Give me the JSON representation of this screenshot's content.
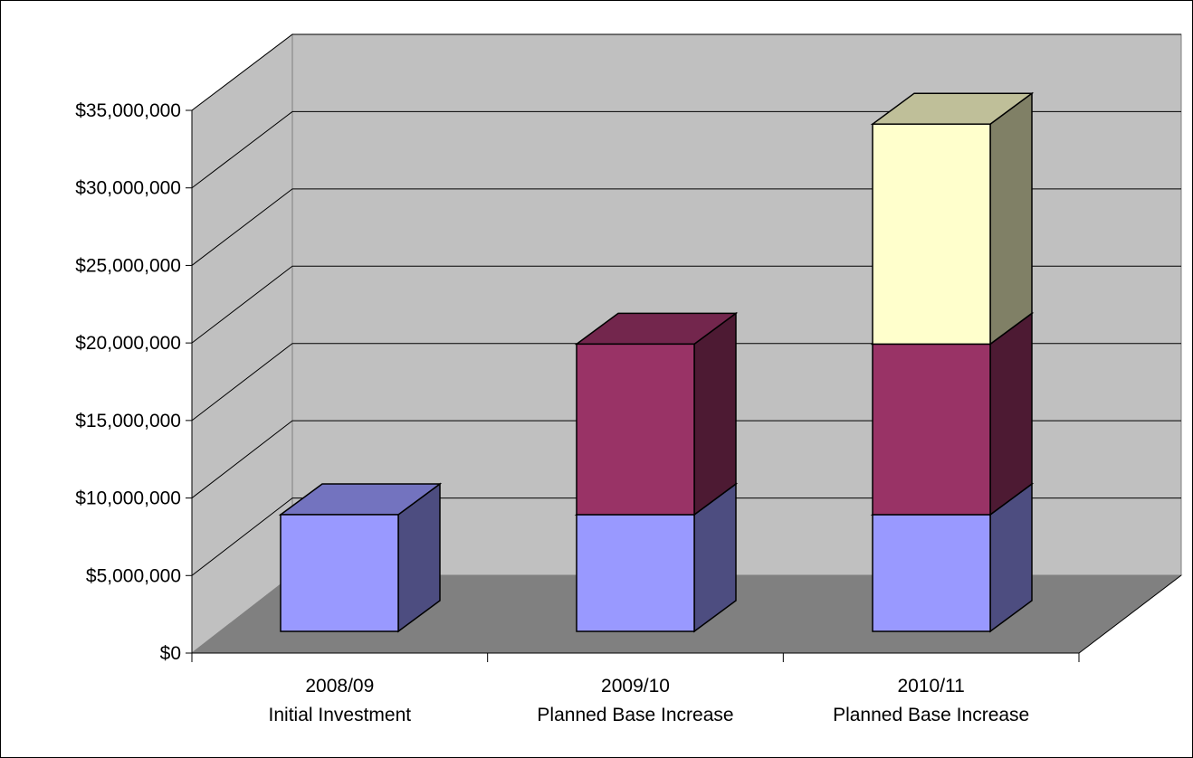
{
  "chart_data": {
    "type": "bar",
    "stacked": true,
    "three_d": true,
    "title": "",
    "xlabel": "",
    "ylabel": "",
    "ylim": [
      0,
      35000000
    ],
    "y_ticks": [
      "$0",
      "$5,000,000",
      "$10,000,000",
      "$15,000,000",
      "$20,000,000",
      "$25,000,000",
      "$30,000,000",
      "$35,000,000"
    ],
    "grid": true,
    "legend": "none",
    "categories": [
      [
        "2008/09",
        "Initial Investment"
      ],
      [
        "2009/10",
        "Planned Base Increase"
      ],
      [
        "2010/11",
        "Planned Base Increase"
      ]
    ],
    "series": [
      {
        "values": [
          7800000,
          7800000,
          7800000
        ],
        "color": "#9999FF"
      },
      {
        "values": [
          0,
          11400000,
          11400000
        ],
        "color": "#993366"
      },
      {
        "values": [
          0,
          0,
          14700000
        ],
        "color": "#FFFFCC"
      }
    ],
    "colors": {
      "back_wall": "#C0C0C0",
      "floor": "#808080",
      "gridline": "#000000"
    }
  }
}
